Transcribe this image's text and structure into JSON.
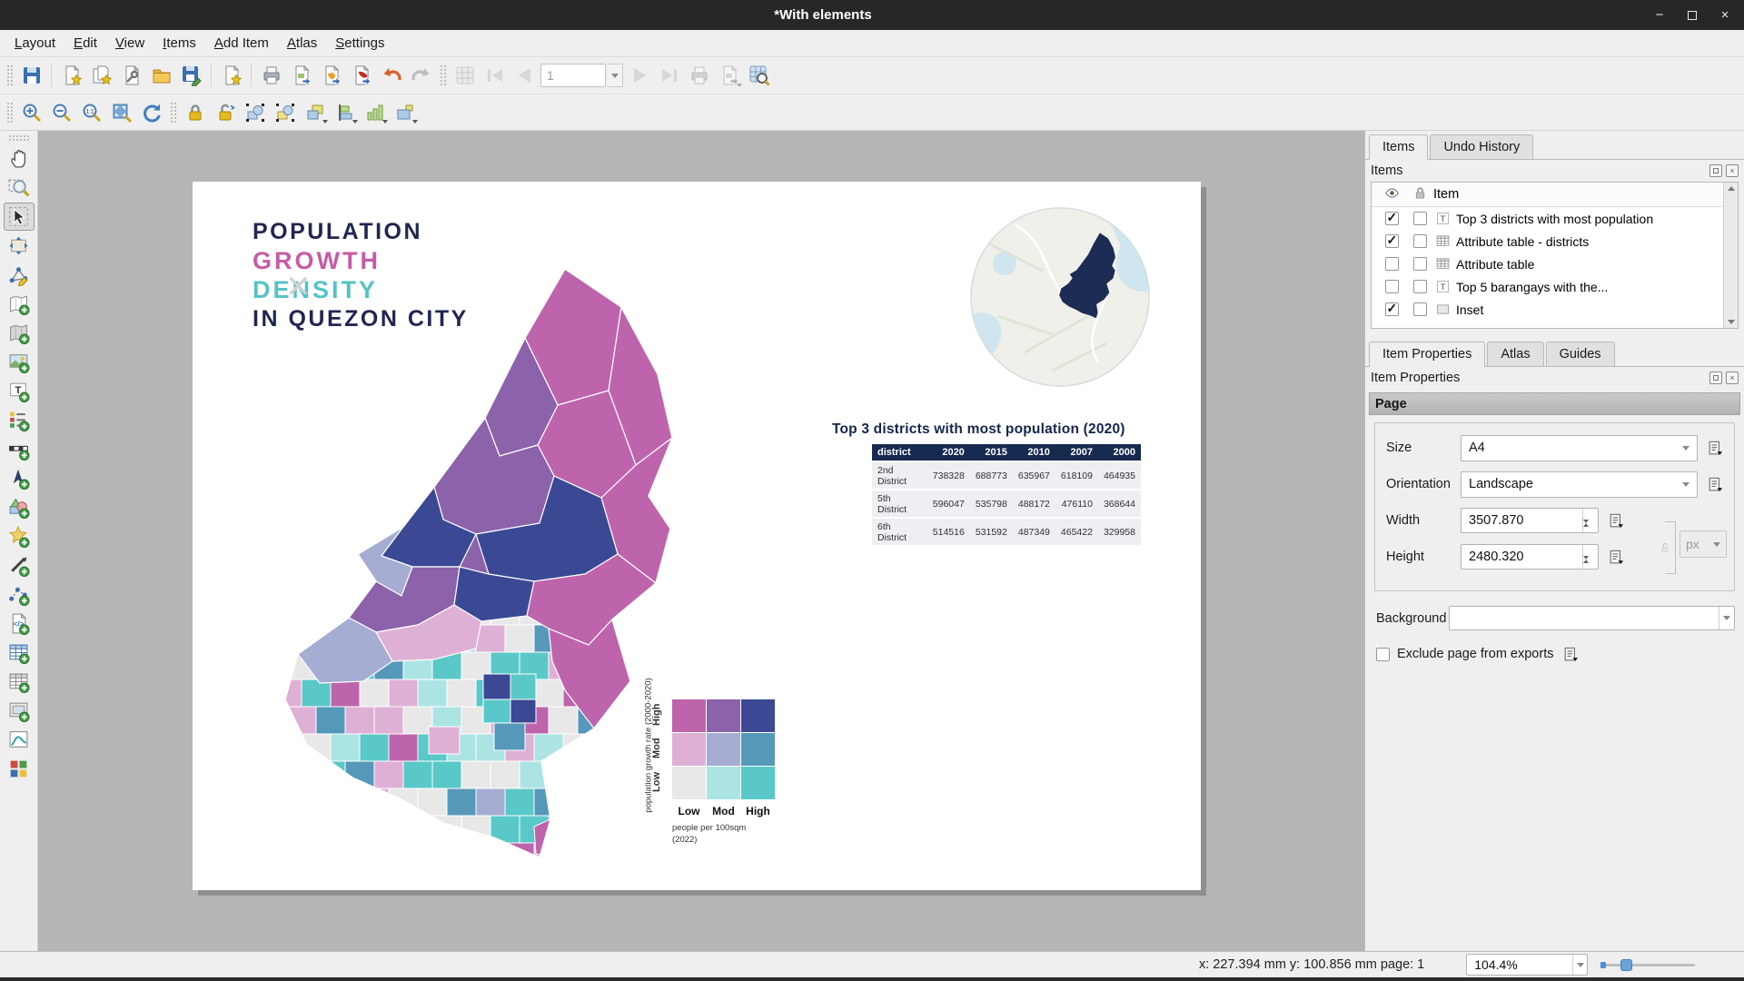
{
  "window": {
    "title": "*With elements"
  },
  "menubar": {
    "items": [
      "Layout",
      "Edit",
      "View",
      "Items",
      "Add Item",
      "Atlas",
      "Settings"
    ]
  },
  "toolbars": {
    "atlas_page": "1"
  },
  "items_panel": {
    "tab_items": "Items",
    "tab_undo": "Undo History",
    "title": "Items",
    "column_item": "Item",
    "rows": [
      {
        "visible": true,
        "locked": false,
        "type": "label",
        "label": "Top 3 districts with most population"
      },
      {
        "visible": true,
        "locked": false,
        "type": "table",
        "label": "Attribute table - districts"
      },
      {
        "visible": false,
        "locked": false,
        "type": "table",
        "label": "Attribute table"
      },
      {
        "visible": false,
        "locked": false,
        "type": "label",
        "label": "Top 5 barangays with the..."
      },
      {
        "visible": true,
        "locked": false,
        "type": "frame",
        "label": "Inset"
      }
    ]
  },
  "props": {
    "tab_item_properties": "Item Properties",
    "tab_atlas": "Atlas",
    "tab_guides": "Guides",
    "title": "Item Properties",
    "section_page": "Page",
    "size_label": "Size",
    "size_value": "A4",
    "orientation_label": "Orientation",
    "orientation_value": "Landscape",
    "width_label": "Width",
    "width_value": "3507.870",
    "height_label": "Height",
    "height_value": "2480.320",
    "unit_value": "px",
    "background_label": "Background",
    "exclude_label": "Exclude page from exports"
  },
  "status": {
    "coords": "x: 227.394 mm y: 100.856 mm page: 1",
    "zoom": "104.4%"
  },
  "page": {
    "title_line1": "Population",
    "title_line2": "Growth",
    "title_line3": "Density",
    "title_line4": "in Quezon City",
    "title_colors": {
      "navy": "#1f2750",
      "pink": "#c75ba4",
      "teal": "#54c3c6"
    },
    "table": {
      "title": "Top 3 districts with most population (2020)",
      "headers": [
        "district",
        "2020",
        "2015",
        "2010",
        "2007",
        "2000"
      ],
      "rows": [
        [
          "2nd District",
          "738328",
          "688773",
          "635967",
          "618109",
          "464935"
        ],
        [
          "5th District",
          "596047",
          "535798",
          "488172",
          "476110",
          "368644"
        ],
        [
          "6th District",
          "514516",
          "531592",
          "487349",
          "465422",
          "329958"
        ]
      ]
    },
    "legend": {
      "y_axis_label": "population growth rate (2000-2020)",
      "y_ticks": [
        "High",
        "Mod",
        "Low"
      ],
      "x_ticks": [
        "Low",
        "Mod",
        "High"
      ],
      "x_axis_label_line1": "people per 100sqm",
      "x_axis_label_line2": "(2022)",
      "palette": [
        [
          "#be64ac",
          "#8c62aa",
          "#3b4994"
        ],
        [
          "#dfb0d6",
          "#a5add3",
          "#5698b9"
        ],
        [
          "#e8e8e8",
          "#ace4e4",
          "#5ac8c8"
        ]
      ]
    }
  }
}
